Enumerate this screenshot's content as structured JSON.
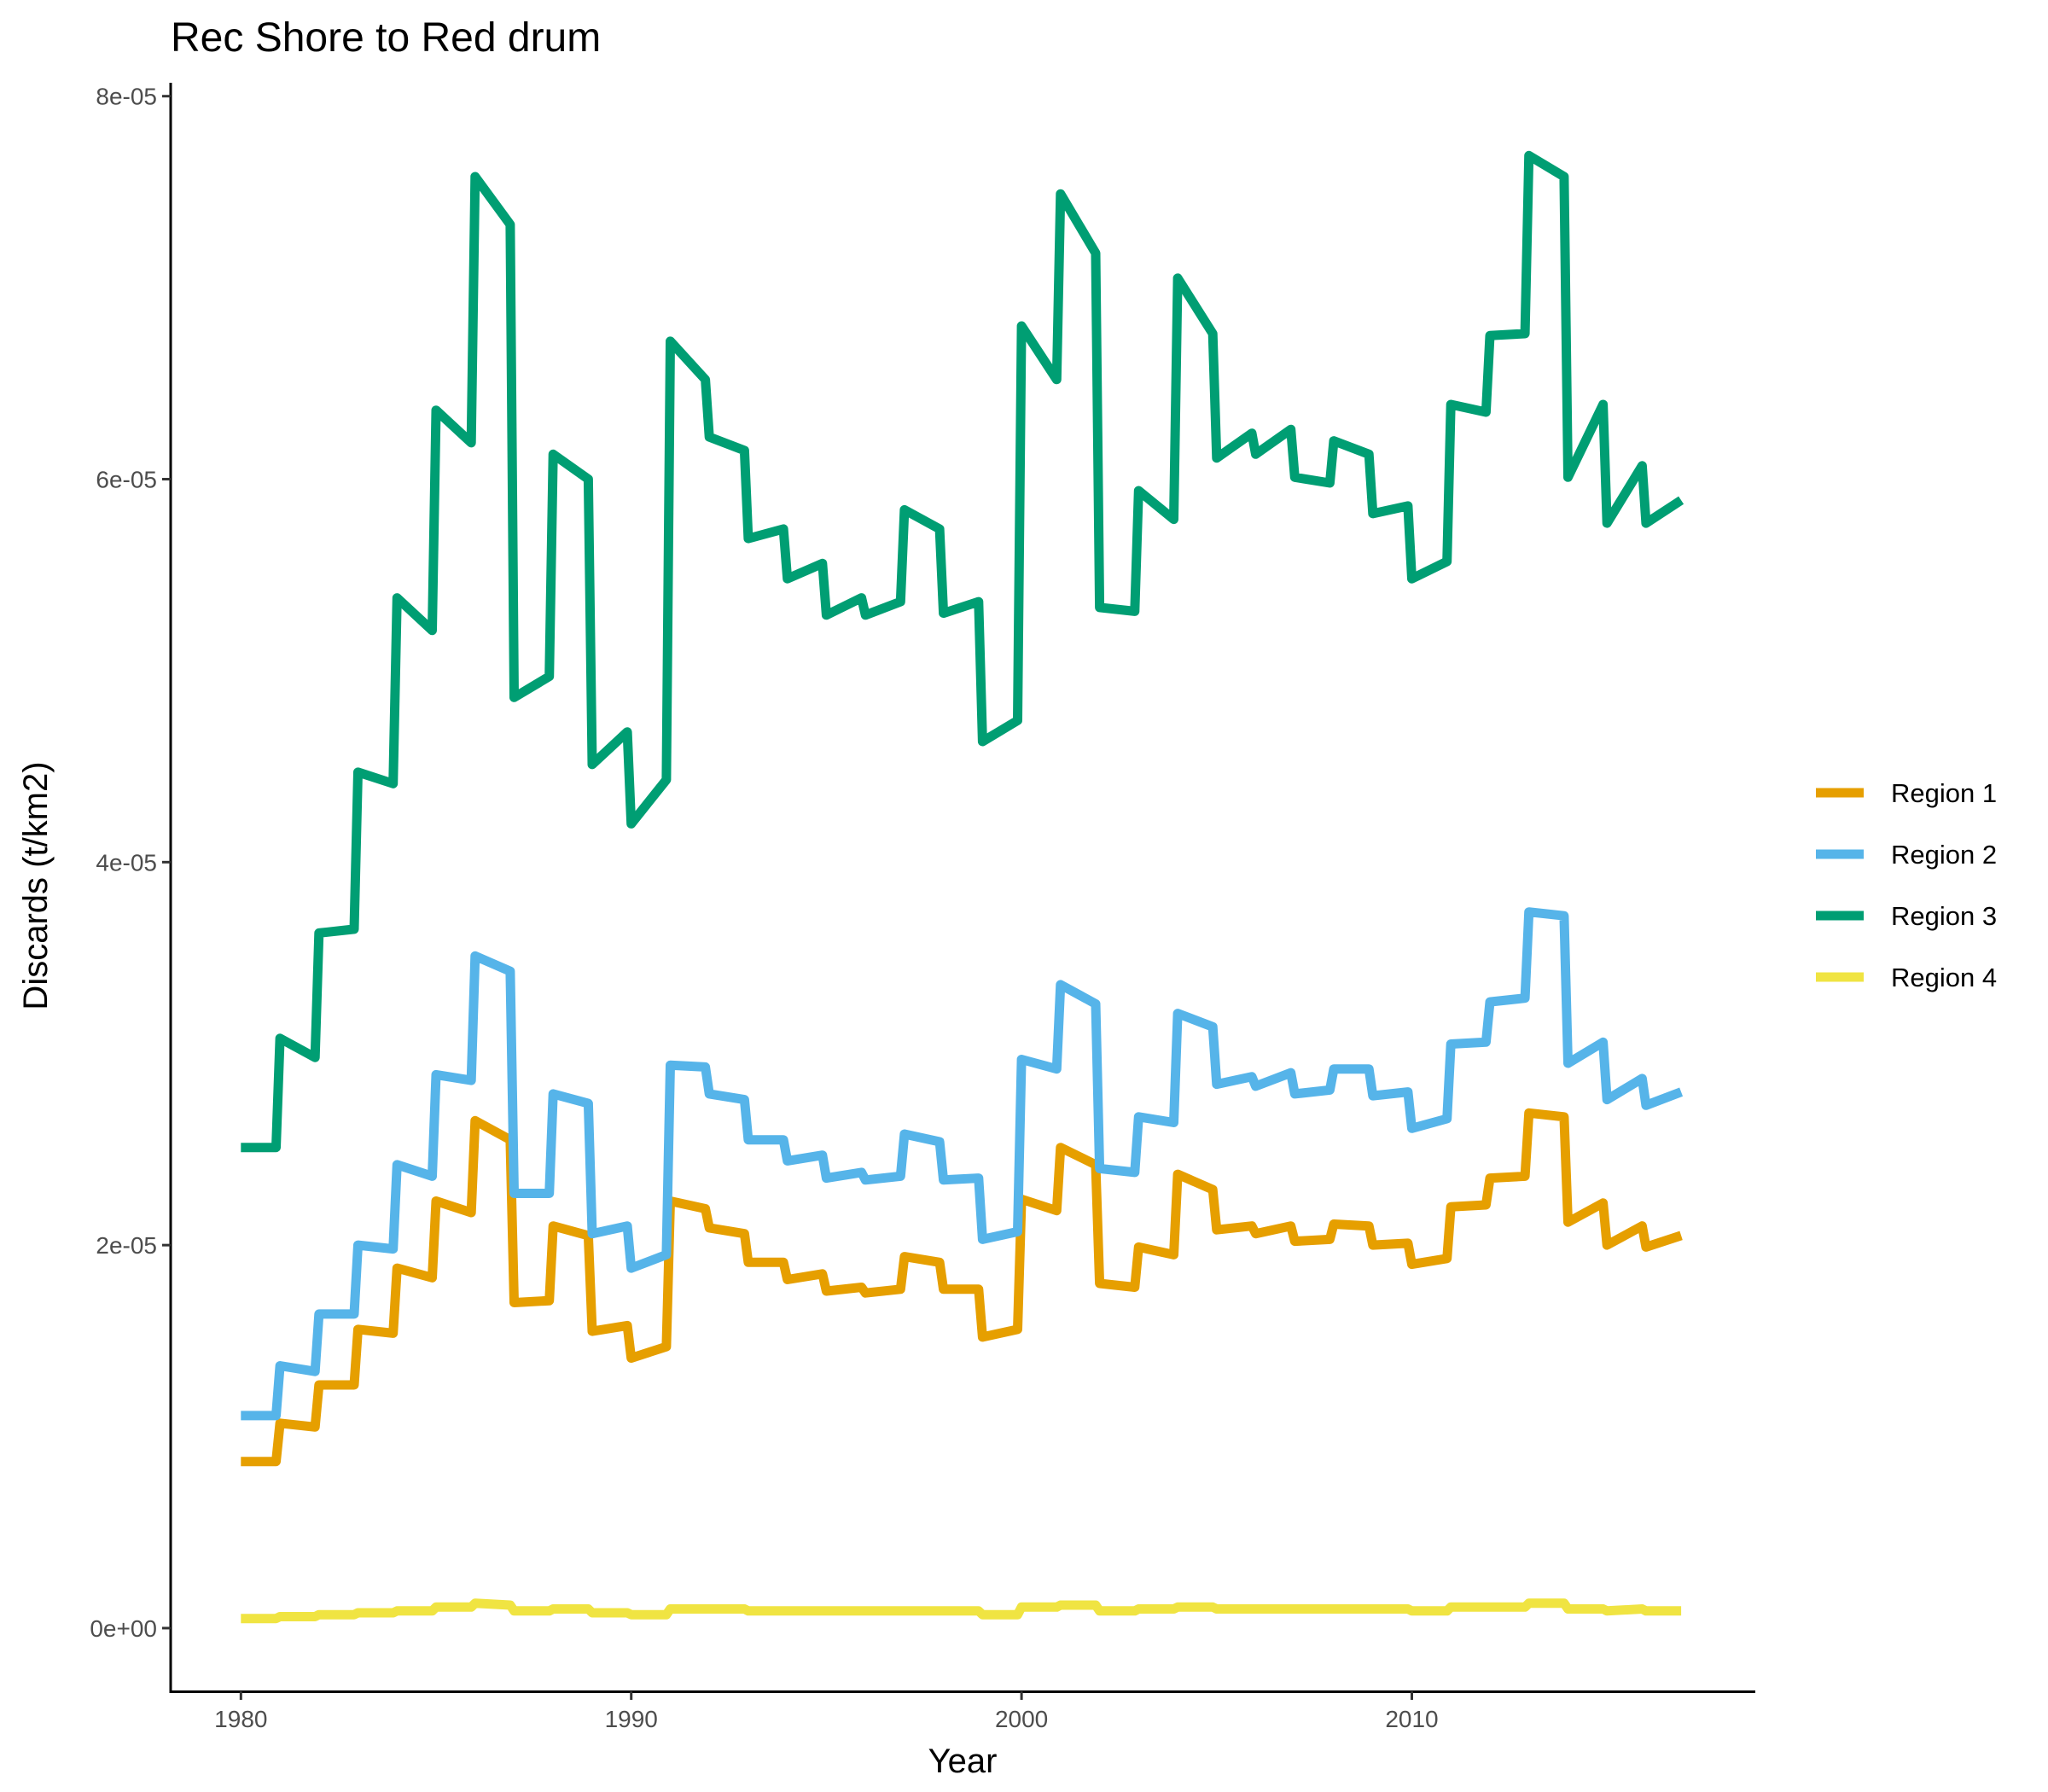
{
  "chart_data": {
    "type": "line",
    "title": "Rec Shore to Red drum",
    "xlabel": "Year",
    "ylabel": "Discards (t/km2)",
    "xlim": [
      1978.2,
      2018.8
    ],
    "ylim": [
      -3.3e-06,
      8.07e-05
    ],
    "x_ticks": [
      1980,
      1990,
      2000,
      2010
    ],
    "y_ticks": [
      0,
      2e-05,
      4e-05,
      6e-05,
      8e-05
    ],
    "y_tick_labels": [
      "0e+00",
      "2e-05",
      "4e-05",
      "6e-05",
      "8e-05"
    ],
    "grid": false,
    "legend": "right",
    "series": [
      {
        "name": "Region 1",
        "color": "#E69F00",
        "x": [
          1980,
          1980.9,
          1981,
          1981.9,
          1982,
          1982.9,
          1983,
          1983.9,
          1984,
          1984.9,
          1985,
          1985.9,
          1986,
          1986.9,
          1987,
          1987.9,
          1988,
          1988.9,
          1989,
          1989.9,
          1990,
          1990.9,
          1991,
          1991.9,
          1992,
          1992.9,
          1993,
          1993.9,
          1994,
          1994.9,
          1995,
          1995.9,
          1996,
          1996.9,
          1997,
          1997.9,
          1998,
          1998.9,
          1999,
          1999.9,
          2000,
          2000.9,
          2001,
          2001.9,
          2002,
          2002.9,
          2003,
          2003.9,
          2004,
          2004.9,
          2005,
          2005.9,
          2006,
          2006.9,
          2007,
          2007.9,
          2008,
          2008.9,
          2009,
          2009.9,
          2010,
          2010.9,
          2011,
          2011.9,
          2012,
          2012.9,
          2013,
          2013.9,
          2014,
          2014.9,
          2015,
          2015.9,
          2016,
          2016.9
        ],
        "values": [
          8.7e-06,
          8.7e-06,
          1.07e-05,
          1.05e-05,
          1.27e-05,
          1.27e-05,
          1.56e-05,
          1.54e-05,
          1.88e-05,
          1.83e-05,
          2.23e-05,
          2.17e-05,
          2.65e-05,
          2.55e-05,
          1.7e-05,
          1.71e-05,
          2.1e-05,
          2.05e-05,
          1.55e-05,
          1.58e-05,
          1.41e-05,
          1.47e-05,
          2.23e-05,
          2.19e-05,
          2.09e-05,
          2.06e-05,
          1.91e-05,
          1.91e-05,
          1.82e-05,
          1.85e-05,
          1.76e-05,
          1.78e-05,
          1.75e-05,
          1.77e-05,
          1.94e-05,
          1.91e-05,
          1.77e-05,
          1.77e-05,
          1.52e-05,
          1.56e-05,
          2.24e-05,
          2.18e-05,
          2.51e-05,
          2.42e-05,
          1.8e-05,
          1.78e-05,
          1.99e-05,
          1.95e-05,
          2.37e-05,
          2.29e-05,
          2.08e-05,
          2.1e-05,
          2.06e-05,
          2.1e-05,
          2.02e-05,
          2.03e-05,
          2.11e-05,
          2.1e-05,
          2e-05,
          2.01e-05,
          1.9e-05,
          1.93e-05,
          2.2e-05,
          2.21e-05,
          2.35e-05,
          2.36e-05,
          2.69e-05,
          2.67e-05,
          2.12e-05,
          2.22e-05,
          2e-05,
          2.1e-05,
          1.99e-05,
          2.05e-05
        ]
      },
      {
        "name": "Region 2",
        "color": "#56B4E9",
        "x": [
          1980,
          1980.9,
          1981,
          1981.9,
          1982,
          1982.9,
          1983,
          1983.9,
          1984,
          1984.9,
          1985,
          1985.9,
          1986,
          1986.9,
          1987,
          1987.9,
          1988,
          1988.9,
          1989,
          1989.9,
          1990,
          1990.9,
          1991,
          1991.9,
          1992,
          1992.9,
          1993,
          1993.9,
          1994,
          1994.9,
          1995,
          1995.9,
          1996,
          1996.9,
          1997,
          1997.9,
          1998,
          1998.9,
          1999,
          1999.9,
          2000,
          2000.9,
          2001,
          2001.9,
          2002,
          2002.9,
          2003,
          2003.9,
          2004,
          2004.9,
          2005,
          2005.9,
          2006,
          2006.9,
          2007,
          2007.9,
          2008,
          2008.9,
          2009,
          2009.9,
          2010,
          2010.9,
          2011,
          2011.9,
          2012,
          2012.9,
          2013,
          2013.9,
          2014,
          2014.9,
          2015,
          2015.9,
          2016,
          2016.9
        ],
        "values": [
          1.11e-05,
          1.11e-05,
          1.37e-05,
          1.34e-05,
          1.64e-05,
          1.64e-05,
          2e-05,
          1.98e-05,
          2.42e-05,
          2.36e-05,
          2.89e-05,
          2.86e-05,
          3.51e-05,
          3.43e-05,
          2.27e-05,
          2.27e-05,
          2.79e-05,
          2.74e-05,
          2.06e-05,
          2.1e-05,
          1.88e-05,
          1.95e-05,
          2.94e-05,
          2.93e-05,
          2.79e-05,
          2.76e-05,
          2.55e-05,
          2.55e-05,
          2.44e-05,
          2.47e-05,
          2.35e-05,
          2.38e-05,
          2.34e-05,
          2.36e-05,
          2.58e-05,
          2.54e-05,
          2.34e-05,
          2.35e-05,
          2.03e-05,
          2.07e-05,
          2.97e-05,
          2.92e-05,
          3.36e-05,
          3.26e-05,
          2.4e-05,
          2.38e-05,
          2.67e-05,
          2.64e-05,
          3.21e-05,
          3.14e-05,
          2.84e-05,
          2.88e-05,
          2.83e-05,
          2.9e-05,
          2.79e-05,
          2.81e-05,
          2.92e-05,
          2.92e-05,
          2.78e-05,
          2.8e-05,
          2.61e-05,
          2.66e-05,
          3.05e-05,
          3.06e-05,
          3.27e-05,
          3.29e-05,
          3.74e-05,
          3.72e-05,
          2.95e-05,
          3.06e-05,
          2.76e-05,
          2.87e-05,
          2.73e-05,
          2.8e-05
        ]
      },
      {
        "name": "Region 3",
        "color": "#009E73",
        "x": [
          1980,
          1980.9,
          1981,
          1981.9,
          1982,
          1982.9,
          1983,
          1983.9,
          1984,
          1984.9,
          1985,
          1985.9,
          1986,
          1986.9,
          1987,
          1987.9,
          1988,
          1988.9,
          1989,
          1989.9,
          1990,
          1990.9,
          1991,
          1991.9,
          1992,
          1992.9,
          1993,
          1993.9,
          1994,
          1994.9,
          1995,
          1995.9,
          1996,
          1996.9,
          1997,
          1997.9,
          1998,
          1998.9,
          1999,
          1999.9,
          2000,
          2000.9,
          2001,
          2001.9,
          2002,
          2002.9,
          2003,
          2003.9,
          2004,
          2004.9,
          2005,
          2005.9,
          2006,
          2006.9,
          2007,
          2007.9,
          2008,
          2008.9,
          2009,
          2009.9,
          2010,
          2010.9,
          2011,
          2011.9,
          2012,
          2012.9,
          2013,
          2013.9,
          2014,
          2014.9,
          2015,
          2015.9,
          2016,
          2016.9
        ],
        "values": [
          2.51e-05,
          2.51e-05,
          3.08e-05,
          2.98e-05,
          3.63e-05,
          3.65e-05,
          4.47e-05,
          4.41e-05,
          5.38e-05,
          5.21e-05,
          6.36e-05,
          6.19e-05,
          7.58e-05,
          7.33e-05,
          4.86e-05,
          4.97e-05,
          6.13e-05,
          6e-05,
          4.51e-05,
          4.68e-05,
          4.2e-05,
          4.43e-05,
          6.72e-05,
          6.52e-05,
          6.22e-05,
          6.15e-05,
          5.69e-05,
          5.74e-05,
          5.48e-05,
          5.56e-05,
          5.29e-05,
          5.38e-05,
          5.29e-05,
          5.36e-05,
          5.84e-05,
          5.74e-05,
          5.3e-05,
          5.36e-05,
          4.63e-05,
          4.74e-05,
          6.8e-05,
          6.52e-05,
          7.49e-05,
          7.18e-05,
          5.33e-05,
          5.31e-05,
          5.94e-05,
          5.79e-05,
          7.05e-05,
          6.76e-05,
          6.11e-05,
          6.24e-05,
          6.13e-05,
          6.26e-05,
          6.01e-05,
          5.98e-05,
          6.2e-05,
          6.13e-05,
          5.82e-05,
          5.86e-05,
          5.48e-05,
          5.57e-05,
          6.39e-05,
          6.35e-05,
          6.75e-05,
          6.76e-05,
          7.69e-05,
          7.58e-05,
          6.01e-05,
          6.39e-05,
          5.77e-05,
          6.07e-05,
          5.77e-05,
          5.89e-05
        ]
      },
      {
        "name": "Region 4",
        "color": "#F0E442",
        "x": [
          1980,
          1980.9,
          1981,
          1981.9,
          1982,
          1982.9,
          1983,
          1983.9,
          1984,
          1984.9,
          1985,
          1985.9,
          1986,
          1986.9,
          1987,
          1987.9,
          1988,
          1988.9,
          1989,
          1989.9,
          1990,
          1990.9,
          1991,
          1991.9,
          1992,
          1992.9,
          1993,
          1993.9,
          1994,
          1994.9,
          1995,
          1995.9,
          1996,
          1996.9,
          1997,
          1997.9,
          1998,
          1998.9,
          1999,
          1999.9,
          2000,
          2000.9,
          2001,
          2001.9,
          2002,
          2002.9,
          2003,
          2003.9,
          2004,
          2004.9,
          2005,
          2005.9,
          2006,
          2006.9,
          2007,
          2007.9,
          2008,
          2008.9,
          2009,
          2009.9,
          2010,
          2010.9,
          2011,
          2011.9,
          2012,
          2012.9,
          2013,
          2013.9,
          2014,
          2014.9,
          2015,
          2015.9,
          2016,
          2016.9
        ],
        "values": [
          5e-07,
          5e-07,
          6e-07,
          6e-07,
          7e-07,
          7e-07,
          8e-07,
          8e-07,
          9e-07,
          9e-07,
          1.1e-06,
          1.1e-06,
          1.3e-06,
          1.2e-06,
          9e-07,
          9e-07,
          1e-06,
          1e-06,
          8e-07,
          8e-07,
          7e-07,
          7e-07,
          1e-06,
          1e-06,
          1e-06,
          1e-06,
          9e-07,
          9e-07,
          9e-07,
          9e-07,
          9e-07,
          9e-07,
          9e-07,
          9e-07,
          9e-07,
          9e-07,
          9e-07,
          9e-07,
          7e-07,
          7e-07,
          1.1e-06,
          1.1e-06,
          1.2e-06,
          1.2e-06,
          9e-07,
          9e-07,
          1e-06,
          1e-06,
          1.1e-06,
          1.1e-06,
          1e-06,
          1e-06,
          1e-06,
          1e-06,
          1e-06,
          1e-06,
          1e-06,
          1e-06,
          1e-06,
          1e-06,
          9e-07,
          9e-07,
          1.1e-06,
          1.1e-06,
          1.1e-06,
          1.1e-06,
          1.3e-06,
          1.3e-06,
          1e-06,
          1e-06,
          9e-07,
          1e-06,
          9e-07,
          9e-07
        ]
      }
    ]
  }
}
